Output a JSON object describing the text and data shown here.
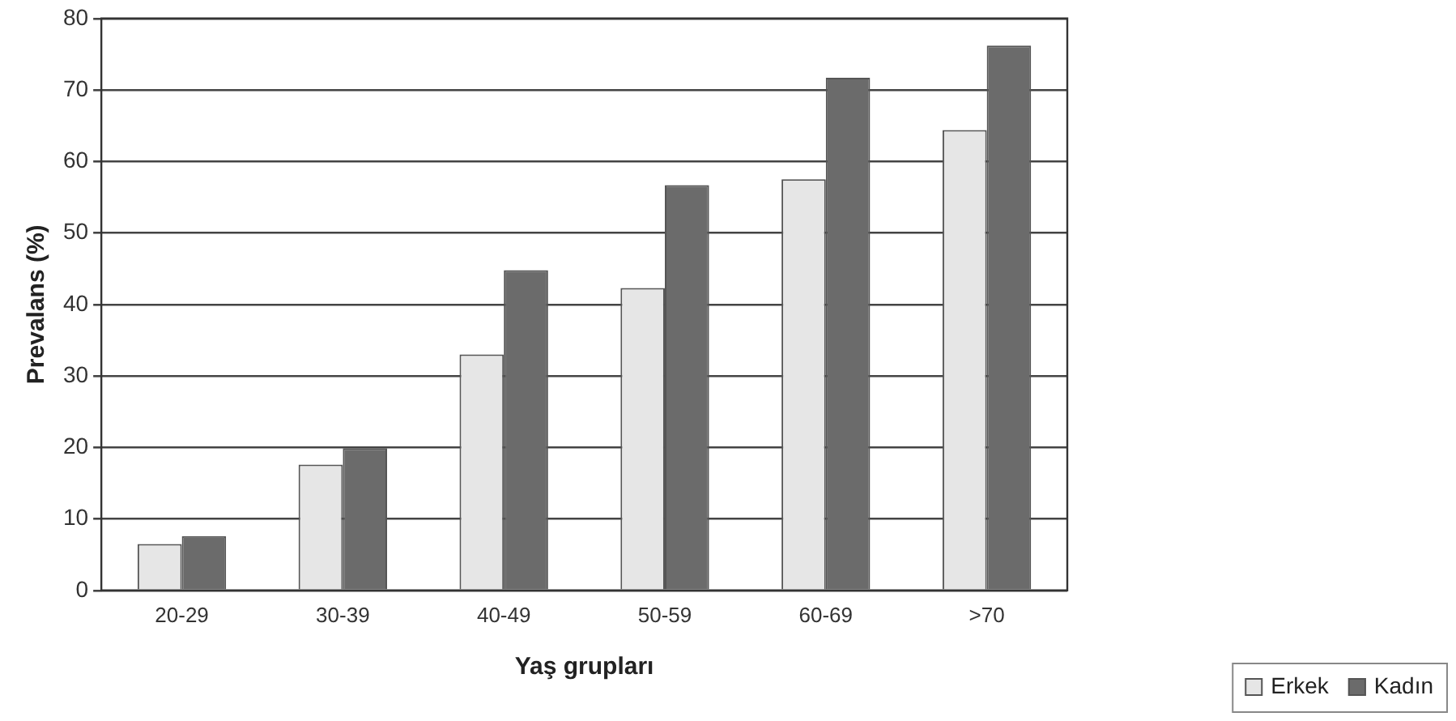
{
  "chart_data": {
    "type": "bar",
    "ylabel": "Prevalans (%)",
    "xlabel": "Yaş grupları",
    "categories": [
      "20-29",
      "30-39",
      "40-49",
      "50-59",
      "60-69",
      ">70"
    ],
    "series": [
      {
        "name": "Erkek",
        "color": "#e6e6e6",
        "values": [
          6.5,
          17.6,
          33,
          42.3,
          57.5,
          64.4
        ]
      },
      {
        "name": "Kadın",
        "color": "#6b6b6b",
        "values": [
          7.6,
          19.9,
          44.8,
          56.7,
          71.7,
          76.2
        ]
      }
    ],
    "ylim": [
      0,
      80
    ],
    "yticks": [
      0,
      10,
      20,
      30,
      40,
      50,
      60,
      70,
      80
    ],
    "grid": "y",
    "legend": "bottom right"
  }
}
